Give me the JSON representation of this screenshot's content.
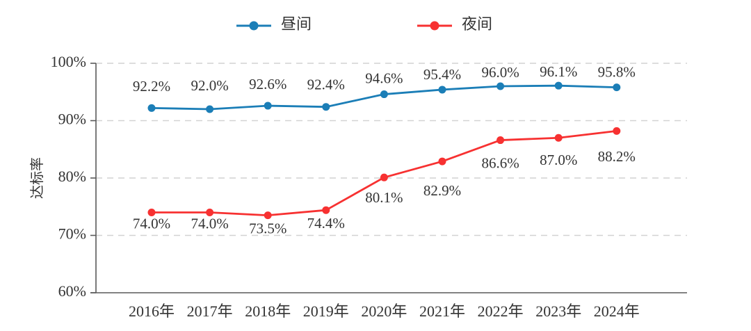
{
  "chart_data": {
    "type": "line",
    "categories": [
      "2016年",
      "2017年",
      "2018年",
      "2019年",
      "2020年",
      "2021年",
      "2022年",
      "2023年",
      "2024年"
    ],
    "series": [
      {
        "key": "daytime",
        "name": "昼间",
        "color": "#1b7eb7",
        "values": [
          92.2,
          92.0,
          92.6,
          92.4,
          94.6,
          95.4,
          96.0,
          96.1,
          95.8
        ],
        "labels": [
          "92.2%",
          "92.0%",
          "92.6%",
          "92.4%",
          "94.6%",
          "95.4%",
          "96.0%",
          "96.1%",
          "95.8%"
        ],
        "label_position": "above",
        "label_dy": [
          -29,
          -32,
          -29,
          -30,
          -21,
          -20,
          -18,
          -18,
          -20
        ]
      },
      {
        "key": "nighttime",
        "name": "夜间",
        "color": "#f73131",
        "values": [
          74.0,
          74.0,
          73.5,
          74.4,
          80.1,
          82.9,
          86.6,
          87.0,
          88.2
        ],
        "labels": [
          "74.0%",
          "74.0%",
          "73.5%",
          "74.4%",
          "80.1%",
          "82.9%",
          "86.6%",
          "87.0%",
          "88.2%"
        ],
        "label_position": "below",
        "label_dy": [
          18,
          18,
          21,
          21,
          31,
          44,
          35,
          34,
          39
        ]
      }
    ],
    "title": "",
    "xlabel": "",
    "ylabel": "达标率",
    "y_ticks": [
      {
        "value": 100,
        "label": "100%"
      },
      {
        "value": 90,
        "label": "90%"
      },
      {
        "value": 80,
        "label": "80%"
      },
      {
        "value": 70,
        "label": "70%"
      },
      {
        "value": 60,
        "label": "60%"
      }
    ],
    "ylim": [
      60,
      100
    ],
    "grid": "horizontal-dashed",
    "legend_position": "top",
    "colors": {
      "grid_line": "#d2d2d2",
      "axis_line": "#595959",
      "text": "#333333"
    }
  }
}
